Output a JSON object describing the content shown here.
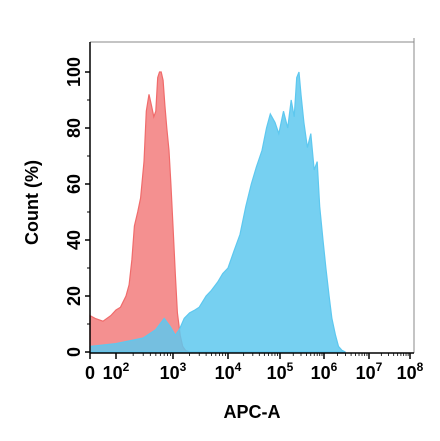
{
  "chart_data": {
    "type": "area",
    "title": "",
    "xlabel": "APC-A",
    "ylabel": "Count (%)",
    "x_scale": "log",
    "xlim": [
      0,
      100000000
    ],
    "ylim": [
      0,
      110
    ],
    "grid": false,
    "x_ticks": [
      {
        "base": "0",
        "exp": ""
      },
      {
        "base": "10",
        "exp": "2"
      },
      {
        "base": "10",
        "exp": "3"
      },
      {
        "base": "10",
        "exp": "4"
      },
      {
        "base": "10",
        "exp": "5"
      },
      {
        "base": "10",
        "exp": "6"
      },
      {
        "base": "10",
        "exp": "7"
      },
      {
        "base": "10",
        "exp": "8"
      }
    ],
    "y_ticks": [
      "0",
      "20",
      "40",
      "60",
      "80",
      "100"
    ],
    "series": [
      {
        "color": "#f06b6b",
        "fill_opacity": 0.75,
        "points": [
          [
            0,
            13
          ],
          [
            20,
            12
          ],
          [
            50,
            11
          ],
          [
            80,
            13
          ],
          [
            100,
            15
          ],
          [
            120,
            16
          ],
          [
            150,
            20
          ],
          [
            170,
            24
          ],
          [
            190,
            33
          ],
          [
            210,
            45
          ],
          [
            240,
            50
          ],
          [
            270,
            55
          ],
          [
            310,
            68
          ],
          [
            340,
            86
          ],
          [
            380,
            92
          ],
          [
            420,
            88
          ],
          [
            460,
            84
          ],
          [
            500,
            86
          ],
          [
            540,
            98
          ],
          [
            580,
            100
          ],
          [
            620,
            100
          ],
          [
            670,
            97
          ],
          [
            720,
            88
          ],
          [
            780,
            80
          ],
          [
            850,
            72
          ],
          [
            920,
            60
          ],
          [
            1000,
            45
          ],
          [
            1100,
            28
          ],
          [
            1200,
            14
          ],
          [
            1350,
            6
          ],
          [
            1500,
            2
          ],
          [
            1700,
            0.5
          ],
          [
            2000,
            0
          ]
        ]
      },
      {
        "color": "#5ec8ef",
        "fill_opacity": 0.85,
        "points": [
          [
            0,
            2
          ],
          [
            100,
            3
          ],
          [
            300,
            5
          ],
          [
            500,
            8
          ],
          [
            700,
            12
          ],
          [
            900,
            9
          ],
          [
            1100,
            6
          ],
          [
            1300,
            8
          ],
          [
            1600,
            12
          ],
          [
            2000,
            14
          ],
          [
            2500,
            15
          ],
          [
            3000,
            16
          ],
          [
            4000,
            20
          ],
          [
            5000,
            22
          ],
          [
            6500,
            25
          ],
          [
            8000,
            28
          ],
          [
            10000,
            30
          ],
          [
            13000,
            36
          ],
          [
            17000,
            42
          ],
          [
            22000,
            52
          ],
          [
            28000,
            60
          ],
          [
            35000,
            66
          ],
          [
            45000,
            72
          ],
          [
            55000,
            80
          ],
          [
            65000,
            85
          ],
          [
            80000,
            82
          ],
          [
            95000,
            78
          ],
          [
            120000,
            86
          ],
          [
            150000,
            80
          ],
          [
            180000,
            90
          ],
          [
            210000,
            84
          ],
          [
            240000,
            98
          ],
          [
            270000,
            100
          ],
          [
            300000,
            92
          ],
          [
            350000,
            82
          ],
          [
            420000,
            73
          ],
          [
            500000,
            78
          ],
          [
            600000,
            65
          ],
          [
            700000,
            68
          ],
          [
            800000,
            52
          ],
          [
            950000,
            40
          ],
          [
            1100000,
            30
          ],
          [
            1300000,
            20
          ],
          [
            1500000,
            12
          ],
          [
            1800000,
            6
          ],
          [
            2100000,
            2
          ],
          [
            2500000,
            0.6
          ],
          [
            3000000,
            0
          ]
        ]
      }
    ]
  }
}
